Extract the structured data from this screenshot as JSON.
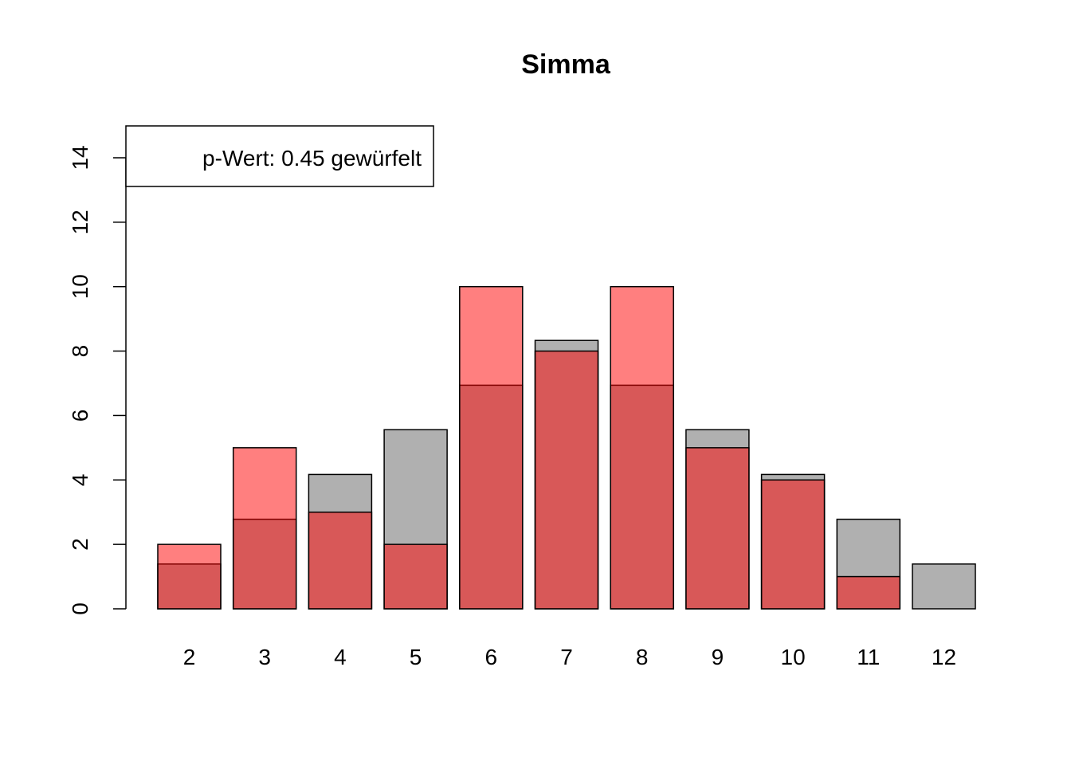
{
  "chart_data": {
    "type": "bar",
    "title": "Simma",
    "xlabel": "",
    "ylabel": "",
    "categories": [
      "2",
      "3",
      "4",
      "5",
      "6",
      "7",
      "8",
      "9",
      "10",
      "11",
      "12"
    ],
    "series": [
      {
        "values": [
          1.39,
          2.78,
          4.17,
          5.56,
          6.94,
          8.33,
          6.94,
          5.56,
          4.17,
          2.78,
          1.39
        ],
        "color": "#b0b0b0"
      },
      {
        "values": [
          2,
          5,
          3,
          2,
          10,
          8,
          10,
          5,
          4,
          1,
          0
        ],
        "color": "#ff0000",
        "opacity": 0.5
      }
    ],
    "ylim": [
      0,
      14
    ],
    "yticks": [
      0,
      2,
      4,
      6,
      8,
      10,
      12,
      14
    ],
    "grid": false,
    "legend": {
      "position": "top-left",
      "text": "p-Wert: 0.45 gewürfelt"
    }
  }
}
